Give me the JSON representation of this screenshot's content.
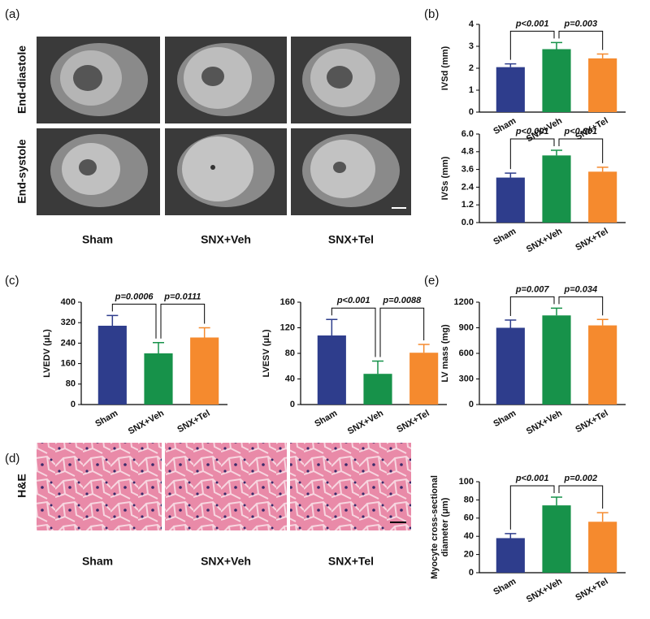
{
  "figure": {
    "panel_labels": [
      "(a)",
      "(b)",
      "(c)",
      "(d)",
      "(e)"
    ],
    "mri_rows": [
      "End-diastole",
      "End-systole"
    ],
    "mri_columns": [
      "Sham",
      "SNX+Veh",
      "SNX+Tel"
    ],
    "he_row": "H&E",
    "he_columns": [
      "Sham",
      "SNX+Veh",
      "SNX+Tel"
    ]
  },
  "chart_data": [
    {
      "type": "bar",
      "y_label": "IVSd (mm)",
      "categories": [
        "Sham",
        "SNX+Veh",
        "SNX+Tel"
      ],
      "values": [
        2.05,
        2.87,
        2.45
      ],
      "errors": [
        0.15,
        0.3,
        0.2
      ],
      "colors": [
        "#2e3d8c",
        "#17924a",
        "#f58a2e"
      ],
      "ylim": [
        0,
        4
      ],
      "yticks": [
        0,
        1,
        2,
        3,
        4
      ],
      "annotations": [
        "p<0.001",
        "p=0.003"
      ]
    },
    {
      "type": "bar",
      "y_label": "IVSs (mm)",
      "categories": [
        "Sham",
        "SNX+Veh",
        "SNX+Tel"
      ],
      "values": [
        3.05,
        4.55,
        3.45
      ],
      "errors": [
        0.3,
        0.35,
        0.3
      ],
      "colors": [
        "#2e3d8c",
        "#17924a",
        "#f58a2e"
      ],
      "ylim": [
        0,
        6
      ],
      "yticks": [
        {
          "value": 0,
          "label": "0.0"
        },
        {
          "value": 1.2,
          "label": "1.2"
        },
        {
          "value": 2.4,
          "label": "2.4"
        },
        {
          "value": 3.6,
          "label": "3.6"
        },
        {
          "value": 4.8,
          "label": "4.8"
        },
        {
          "value": 6,
          "label": "6.0"
        }
      ],
      "annotations": [
        "p<0.001",
        "p<0.001"
      ]
    },
    {
      "type": "bar",
      "y_label": "LVEDV (μL)",
      "categories": [
        "Sham",
        "SNX+Veh",
        "SNX+Tel"
      ],
      "values": [
        308,
        200,
        262
      ],
      "errors": [
        40,
        42,
        38
      ],
      "colors": [
        "#2e3d8c",
        "#17924a",
        "#f58a2e"
      ],
      "ylim": [
        0,
        400
      ],
      "yticks": [
        0,
        80,
        160,
        240,
        320,
        400
      ],
      "annotations": [
        "p=0.0006",
        "p=0.0111"
      ]
    },
    {
      "type": "bar",
      "y_label": "LVESV (μL)",
      "categories": [
        "Sham",
        "SNX+Veh",
        "SNX+Tel"
      ],
      "values": [
        108,
        48,
        81
      ],
      "errors": [
        25,
        20,
        13
      ],
      "colors": [
        "#2e3d8c",
        "#17924a",
        "#f58a2e"
      ],
      "ylim": [
        0,
        160
      ],
      "yticks": [
        0,
        40,
        80,
        120,
        160
      ],
      "annotations": [
        "p<0.001",
        "p=0.0088"
      ]
    },
    {
      "type": "bar",
      "y_label": "LV mass (mg)",
      "categories": [
        "Sham",
        "SNX+Veh",
        "SNX+Tel"
      ],
      "values": [
        900,
        1045,
        928
      ],
      "errors": [
        90,
        85,
        70
      ],
      "colors": [
        "#2e3d8c",
        "#17924a",
        "#f58a2e"
      ],
      "ylim": [
        0,
        1200
      ],
      "yticks": [
        0,
        300,
        600,
        900,
        1200
      ],
      "annotations": [
        "p=0.007",
        "p=0.034"
      ]
    },
    {
      "type": "bar",
      "y_label": [
        "Myocyte cross-sectional",
        "diameter (μm)"
      ],
      "categories": [
        "Sham",
        "SNX+Veh",
        "SNX+Tel"
      ],
      "values": [
        38,
        74,
        56
      ],
      "errors": [
        5,
        9,
        10
      ],
      "colors": [
        "#2e3d8c",
        "#17924a",
        "#f58a2e"
      ],
      "ylim": [
        0,
        100
      ],
      "yticks": [
        0,
        20,
        40,
        60,
        80,
        100
      ],
      "annotations": [
        "p<0.001",
        "p=0.002"
      ]
    }
  ]
}
